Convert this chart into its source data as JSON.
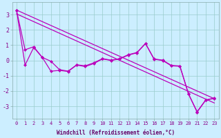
{
  "background_color": "#cceeff",
  "grid_color": "#99cccc",
  "line_color": "#bb00bb",
  "xlim": [
    -0.5,
    23.5
  ],
  "ylim": [
    -3.8,
    3.8
  ],
  "yticks": [
    -3,
    -2,
    -1,
    0,
    1,
    2,
    3
  ],
  "xticks": [
    0,
    1,
    2,
    3,
    4,
    5,
    6,
    7,
    8,
    9,
    10,
    11,
    12,
    13,
    14,
    15,
    16,
    17,
    18,
    19,
    20,
    21,
    22,
    23
  ],
  "xlabel": "Windchill (Refroidissement éolien,°C)",
  "wavy1": [
    3.3,
    0.7,
    0.9,
    0.2,
    -0.05,
    -0.6,
    -0.7,
    -0.28,
    -0.35,
    -0.15,
    0.12,
    0.02,
    0.12,
    0.38,
    0.52,
    1.12,
    0.1,
    0.02,
    -0.32,
    -0.36,
    -2.18,
    -3.35,
    -2.58,
    -2.46
  ],
  "wavy2": [
    3.3,
    -0.3,
    0.85,
    0.2,
    -0.7,
    -0.65,
    -0.72,
    -0.3,
    -0.4,
    -0.2,
    0.1,
    0.0,
    0.1,
    0.35,
    0.5,
    1.1,
    0.08,
    0.0,
    -0.35,
    -0.38,
    -2.2,
    -3.38,
    -2.6,
    -2.48
  ],
  "trend1_y": [
    3.3,
    -2.5
  ],
  "trend2_y": [
    3.05,
    -2.78
  ],
  "trend_x": [
    0,
    23
  ],
  "xtick_fontsize": 5.0,
  "ytick_fontsize": 6.0,
  "xlabel_fontsize": 5.5,
  "tick_color": "#880088",
  "label_color": "#660066"
}
